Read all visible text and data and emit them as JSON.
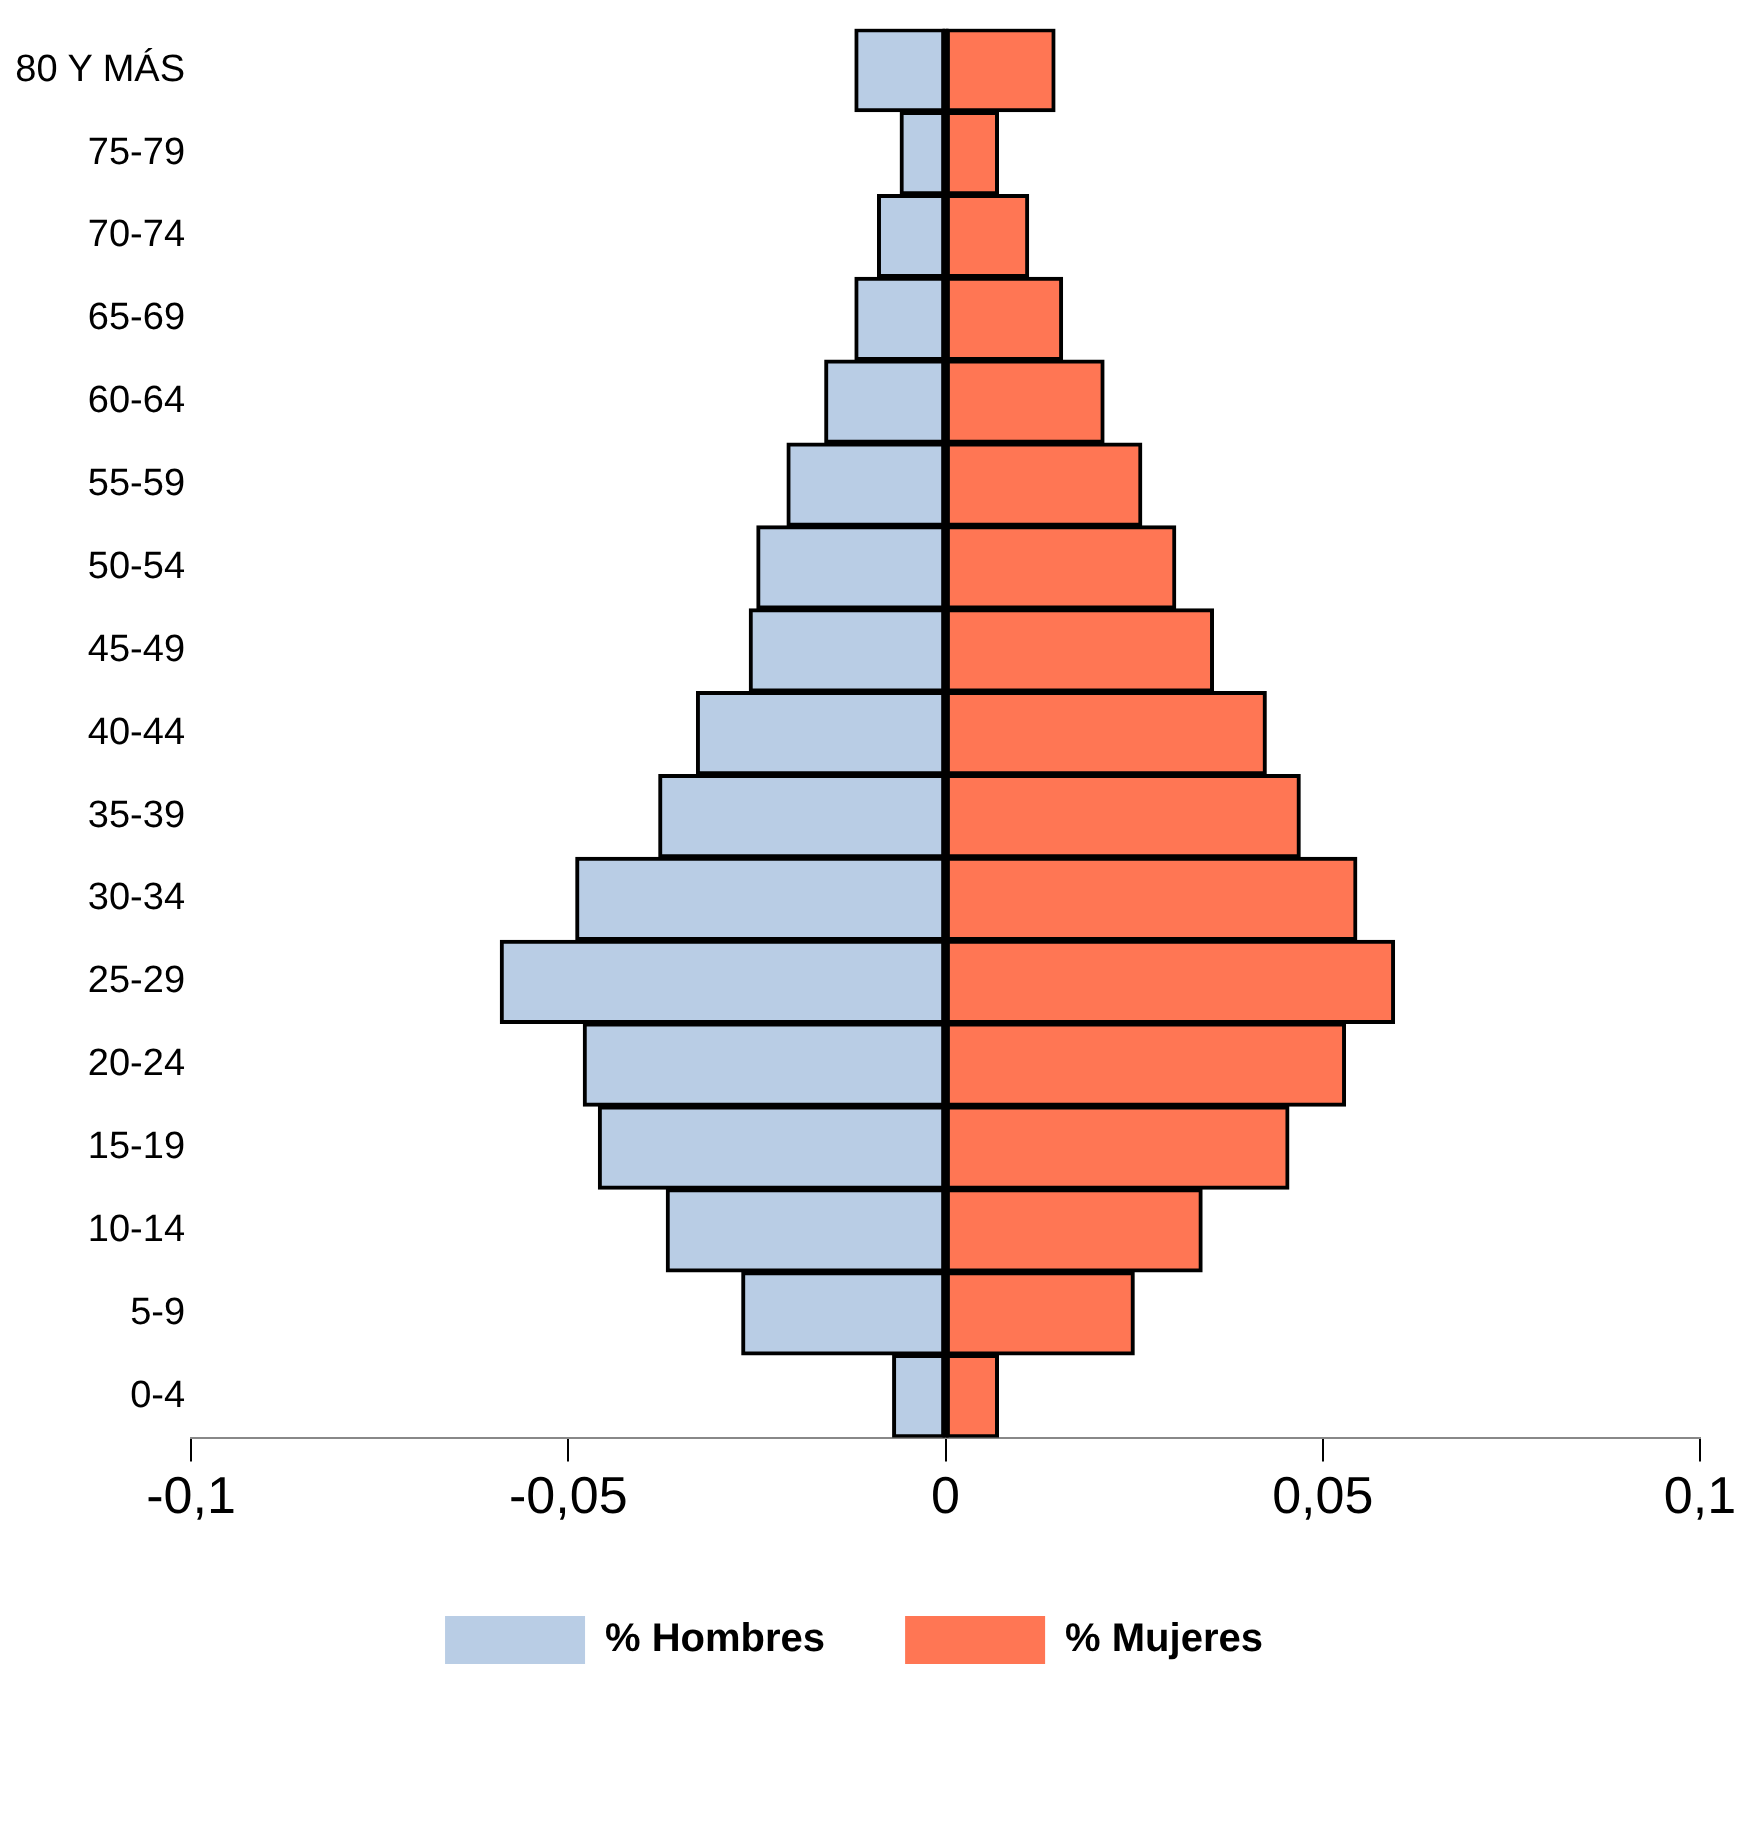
{
  "chart_data": {
    "type": "bar",
    "orientation": "horizontal",
    "stacked": true,
    "categories": [
      "80 Y MÁS",
      "75-79",
      "70-74",
      "65-69",
      "60-64",
      "55-59",
      "50-54",
      "45-49",
      "40-44",
      "35-39",
      "30-34",
      "25-29",
      "20-24",
      "15-19",
      "10-14",
      "5-9",
      "0-4"
    ],
    "series": [
      {
        "name": "% Hombres",
        "color": "#b9cde5",
        "values": [
          -0.012,
          -0.006,
          -0.009,
          -0.012,
          -0.016,
          -0.021,
          -0.025,
          -0.026,
          -0.033,
          -0.038,
          -0.049,
          -0.059,
          -0.048,
          -0.046,
          -0.037,
          -0.027,
          -0.007
        ]
      },
      {
        "name": "% Mujeres",
        "color": "#ff7654",
        "values": [
          0.0145,
          0.007,
          0.011,
          0.0155,
          0.021,
          0.026,
          0.0305,
          0.0355,
          0.0425,
          0.047,
          0.0545,
          0.0595,
          0.053,
          0.0455,
          0.034,
          0.025,
          0.007
        ]
      }
    ],
    "xlim": [
      -0.1,
      0.1
    ],
    "xticks": [
      {
        "value": -0.1,
        "label": "-0,1"
      },
      {
        "value": -0.05,
        "label": "-0,05"
      },
      0,
      {
        "value": 0.05,
        "label": "0,05"
      },
      {
        "value": 0.1,
        "label": "0,1"
      }
    ],
    "ref_lines": [
      {
        "axis": "x",
        "value": 0,
        "color": "#000000"
      }
    ],
    "grid": false,
    "legend": "bottom"
  }
}
